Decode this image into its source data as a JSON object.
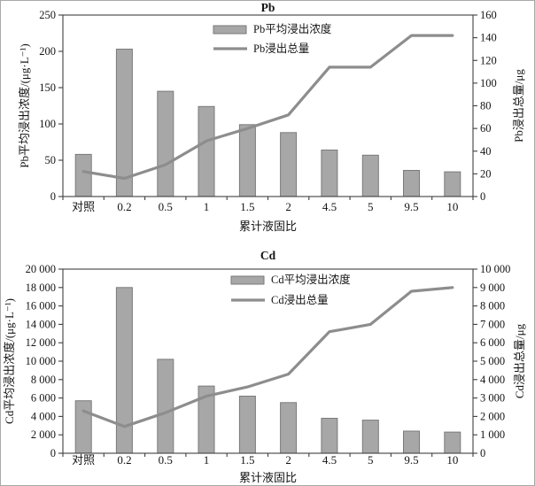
{
  "figure": {
    "xlabel": "累计液固比"
  },
  "colors": {
    "bar_fill": "#a7a7a7",
    "bar_stroke": "#7a7a7a",
    "line": "#8d8d8d",
    "axis": "#3f3f3f",
    "text": "#141414",
    "background": "#ffffff"
  },
  "chart_data": [
    {
      "type": "bar",
      "title": "Pb",
      "xlabel": "累计液固比",
      "categories": [
        "对照",
        "0.2",
        "0.5",
        "1",
        "1.5",
        "2",
        "4.5",
        "5",
        "9.5",
        "10"
      ],
      "series": [
        {
          "name": "Pb平均浸出浓度",
          "type": "bar",
          "axis": "left",
          "values": [
            58,
            203,
            145,
            124,
            99,
            88,
            64,
            57,
            36,
            34
          ]
        },
        {
          "name": "Pb浸出总量",
          "type": "line",
          "axis": "right",
          "values": [
            22,
            16,
            28,
            49,
            60,
            72,
            114,
            114,
            142,
            142
          ]
        }
      ],
      "left_axis": {
        "label": "Pb平均浸出浓度/(μg·L⁻¹)",
        "min": 0,
        "max": 250,
        "ticks": [
          "0",
          "50",
          "100",
          "150",
          "200",
          "250"
        ]
      },
      "right_axis": {
        "label": "Pb浸出总量/μg",
        "min": 0,
        "max": 160,
        "ticks": [
          "0",
          "20",
          "40",
          "60",
          "80",
          "100",
          "120",
          "140",
          "160"
        ]
      },
      "legend_position": "inside-top-center",
      "grid": false
    },
    {
      "type": "bar",
      "title": "Cd",
      "xlabel": "累计液固比",
      "categories": [
        "对照",
        "0.2",
        "0.5",
        "1",
        "1.5",
        "2",
        "4.5",
        "5",
        "9.5",
        "10"
      ],
      "series": [
        {
          "name": "Cd平均浸出浓度",
          "type": "bar",
          "axis": "left",
          "values": [
            5700,
            18000,
            10200,
            7300,
            6200,
            5500,
            3800,
            3600,
            2400,
            2300
          ]
        },
        {
          "name": "Cd浸出总量",
          "type": "line",
          "axis": "right",
          "values": [
            2300,
            1450,
            2200,
            3100,
            3600,
            4300,
            6600,
            7000,
            8800,
            9000
          ]
        }
      ],
      "left_axis": {
        "label": "Cd平均浸出浓度/(μg·L⁻¹)",
        "min": 0,
        "max": 20000,
        "ticks": [
          "0",
          "2 000",
          "4 000",
          "6 000",
          "8 000",
          "10 000",
          "12 000",
          "14 000",
          "16 000",
          "18 000",
          "20 000"
        ]
      },
      "right_axis": {
        "label": "Cd浸出总量/μg",
        "min": 0,
        "max": 10000,
        "ticks": [
          "0",
          "1 000",
          "2 000",
          "3 000",
          "4 000",
          "5 000",
          "6 000",
          "7 000",
          "8 000",
          "9 000",
          "10 000"
        ]
      },
      "legend_position": "inside-top-center",
      "grid": false
    }
  ]
}
